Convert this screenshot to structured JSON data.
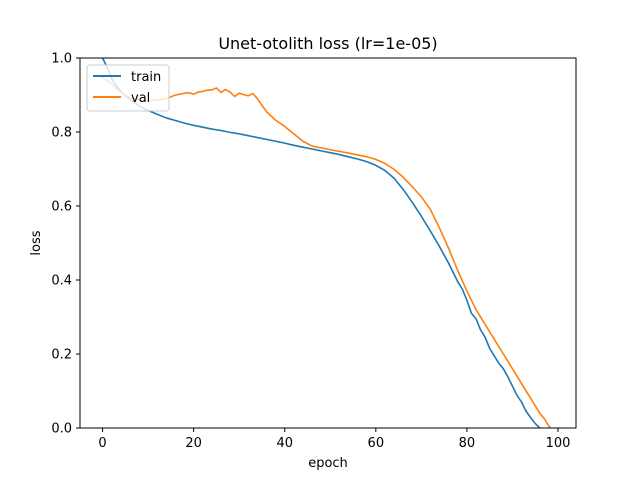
{
  "chart_data": {
    "type": "line",
    "title": "Unet-otolith loss (lr=1e-05)",
    "xlabel": "epoch",
    "ylabel": "loss",
    "xlim": [
      -4.95,
      103.95
    ],
    "ylim": [
      0.0,
      1.0
    ],
    "xticks": [
      0,
      20,
      40,
      60,
      80,
      100
    ],
    "yticks": [
      0.0,
      0.2,
      0.4,
      0.6,
      0.8,
      1.0
    ],
    "xtick_labels": [
      "0",
      "20",
      "40",
      "60",
      "80",
      "100"
    ],
    "ytick_labels": [
      "0.0",
      "0.2",
      "0.4",
      "0.6",
      "0.8",
      "1.0"
    ],
    "grid": false,
    "legend_position": "top-left",
    "series": [
      {
        "name": "train",
        "color": "#1f77b4",
        "x": [
          0,
          1,
          2,
          3,
          4,
          5,
          6,
          7,
          8,
          9,
          10,
          12,
          14,
          16,
          18,
          20,
          22,
          24,
          26,
          28,
          30,
          32,
          34,
          36,
          38,
          40,
          42,
          44,
          46,
          48,
          50,
          52,
          54,
          56,
          58,
          60,
          62,
          64,
          66,
          68,
          70,
          72,
          74,
          76,
          78,
          79,
          80,
          81,
          82,
          83,
          84,
          85,
          86,
          87,
          88,
          89,
          90,
          91,
          92,
          93,
          94,
          95,
          96
        ],
        "y": [
          1.0,
          0.975,
          0.945,
          0.925,
          0.91,
          0.898,
          0.888,
          0.879,
          0.871,
          0.864,
          0.858,
          0.848,
          0.838,
          0.831,
          0.824,
          0.818,
          0.813,
          0.808,
          0.804,
          0.799,
          0.795,
          0.79,
          0.785,
          0.78,
          0.775,
          0.77,
          0.764,
          0.759,
          0.754,
          0.749,
          0.744,
          0.739,
          0.733,
          0.727,
          0.72,
          0.71,
          0.696,
          0.675,
          0.645,
          0.61,
          0.572,
          0.532,
          0.49,
          0.445,
          0.395,
          0.375,
          0.345,
          0.31,
          0.295,
          0.265,
          0.245,
          0.215,
          0.195,
          0.175,
          0.16,
          0.138,
          0.113,
          0.088,
          0.07,
          0.045,
          0.028,
          0.012,
          0.0
        ]
      },
      {
        "name": "val",
        "color": "#ff7f0e",
        "x": [
          0,
          1,
          2,
          3,
          4,
          5,
          6,
          8,
          10,
          12,
          14,
          15,
          16,
          17,
          18,
          19,
          20,
          21,
          22,
          23,
          24,
          25,
          26,
          27,
          28,
          29,
          30,
          31,
          32,
          33,
          34,
          35,
          36,
          38,
          40,
          42,
          44,
          46,
          50,
          54,
          58,
          60,
          62,
          64,
          66,
          68,
          70,
          72,
          74,
          76,
          78,
          80,
          82,
          84,
          86,
          88,
          90,
          92,
          94,
          96,
          97,
          98,
          99
        ],
        "y": [
          0.948,
          0.94,
          0.93,
          0.918,
          0.908,
          0.9,
          0.892,
          0.888,
          0.885,
          0.887,
          0.89,
          0.895,
          0.9,
          0.902,
          0.905,
          0.906,
          0.902,
          0.908,
          0.91,
          0.913,
          0.914,
          0.919,
          0.907,
          0.915,
          0.908,
          0.896,
          0.905,
          0.901,
          0.898,
          0.904,
          0.89,
          0.872,
          0.855,
          0.832,
          0.815,
          0.795,
          0.775,
          0.762,
          0.752,
          0.743,
          0.733,
          0.726,
          0.715,
          0.699,
          0.678,
          0.652,
          0.625,
          0.59,
          0.54,
          0.485,
          0.425,
          0.37,
          0.32,
          0.28,
          0.24,
          0.2,
          0.16,
          0.12,
          0.08,
          0.04,
          0.025,
          0.005,
          -0.01
        ]
      }
    ]
  }
}
